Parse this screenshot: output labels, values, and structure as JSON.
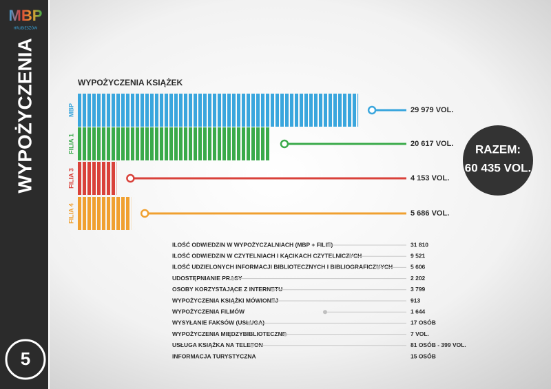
{
  "sidebar": {
    "logo": "MBP",
    "logo_sub": "HRUBIESZÓW",
    "title": "WYPOŻYCZENIA",
    "page": "5"
  },
  "chart_data": {
    "type": "bar",
    "orientation": "horizontal",
    "title": "WYPOŻYCZENIA KSIĄŻEK",
    "categories": [
      "MBP",
      "FILIA 1",
      "FILIA 3",
      "FILIA 4"
    ],
    "values": [
      29979,
      20617,
      4153,
      5686
    ],
    "value_labels": [
      "29 979 VOL.",
      "20 617 VOL.",
      "4 153 VOL.",
      "5 686 VOL."
    ],
    "colors": [
      "#3aa6dd",
      "#3aaa4a",
      "#d9413a",
      "#f0a030"
    ]
  },
  "total": {
    "label": "RAZEM:",
    "value": "60 435 VOL."
  },
  "stats": {
    "rows": [
      {
        "label": "ILOŚĆ ODWIEDZIN W WYPOŻYCZALNIACH (MBP + FILIE)",
        "value": "31 810"
      },
      {
        "label": "ILOŚĆ ODWIEDZIN W CZYTELNIACH I KĄCIKACH CZYTELNICZYCH",
        "value": "9 521"
      },
      {
        "label": "ILOŚĆ UDZIELONYCH INFORMACJI BIBLIOTECZNYCH I BIBLIOGRAFICZNYCH",
        "value": "5 606"
      },
      {
        "label": "UDOSTĘPNIANIE PRASY",
        "value": "2 202"
      },
      {
        "label": "OSOBY KORZYSTAJĄCE Z INTERNETU",
        "value": "3 799"
      },
      {
        "label": "WYPOŻYCZENIA KSIĄŻKI MÓWIONEJ",
        "value": "913"
      },
      {
        "label": "WYPOŻYCZENIA FILMÓW",
        "value": "1 644"
      },
      {
        "label": "WYSYŁANIE FAKSÓW (USŁUGA)",
        "value": "17 OSÓB"
      },
      {
        "label": "WYPOŻYCZENIA MIĘDZYBIBLIOTECZNE",
        "value": "7 VOL."
      },
      {
        "label": "USŁUGA KSIĄŻKA NA TELEFON",
        "value": "81 OSÓB - 399 VOL."
      },
      {
        "label": "INFORMACJA TURYSTYCZNA",
        "value": "15 OSÓB"
      }
    ]
  }
}
